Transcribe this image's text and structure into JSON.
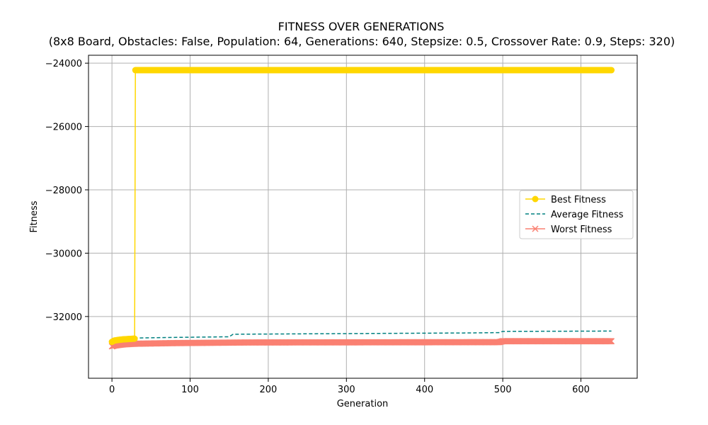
{
  "chart_data": {
    "type": "line",
    "title": "FITNESS OVER GENERATIONS",
    "subtitle": "(8x8 Board, Obstacles: False, Population: 64, Generations: 640, Stepsize: 0.5, Crossover Rate: 0.9, Steps: 320)",
    "xlabel": "Generation",
    "ylabel": "Fitness",
    "xlim": [
      -30,
      672
    ],
    "ylim": [
      -33950,
      -23750
    ],
    "xticks": [
      0,
      100,
      200,
      300,
      400,
      500,
      600
    ],
    "yticks": [
      -32000,
      -30000,
      -28000,
      -26000,
      -24000
    ],
    "xtick_labels": [
      "0",
      "100",
      "200",
      "300",
      "400",
      "500",
      "600"
    ],
    "ytick_labels": [
      "−32000",
      "−30000",
      "−28000",
      "−26000",
      "−24000"
    ],
    "grid": true,
    "legend_position": "center-right",
    "series": [
      {
        "name": "Best Fitness",
        "color": "#FFD700",
        "marker": "circle",
        "linestyle": "solid",
        "points": [
          [
            0,
            -32800
          ],
          [
            3,
            -32760
          ],
          [
            8,
            -32740
          ],
          [
            15,
            -32720
          ],
          [
            29,
            -32700
          ],
          [
            30,
            -24220
          ],
          [
            100,
            -24220
          ],
          [
            300,
            -24220
          ],
          [
            500,
            -24220
          ],
          [
            639,
            -24220
          ]
        ]
      },
      {
        "name": "Average Fitness",
        "color": "#008080",
        "marker": "none",
        "linestyle": "dashed",
        "points": [
          [
            0,
            -32820
          ],
          [
            5,
            -32800
          ],
          [
            15,
            -32780
          ],
          [
            25,
            -32720
          ],
          [
            30,
            -32680
          ],
          [
            80,
            -32660
          ],
          [
            150,
            -32640
          ],
          [
            155,
            -32560
          ],
          [
            300,
            -32540
          ],
          [
            450,
            -32520
          ],
          [
            495,
            -32510
          ],
          [
            500,
            -32470
          ],
          [
            639,
            -32460
          ]
        ]
      },
      {
        "name": "Worst Fitness",
        "color": "#FA8072",
        "marker": "x",
        "linestyle": "solid",
        "points": [
          [
            0,
            -32940
          ],
          [
            3,
            -32920
          ],
          [
            8,
            -32900
          ],
          [
            15,
            -32880
          ],
          [
            30,
            -32860
          ],
          [
            80,
            -32840
          ],
          [
            175,
            -32820
          ],
          [
            495,
            -32810
          ],
          [
            500,
            -32780
          ],
          [
            639,
            -32780
          ]
        ]
      }
    ]
  }
}
